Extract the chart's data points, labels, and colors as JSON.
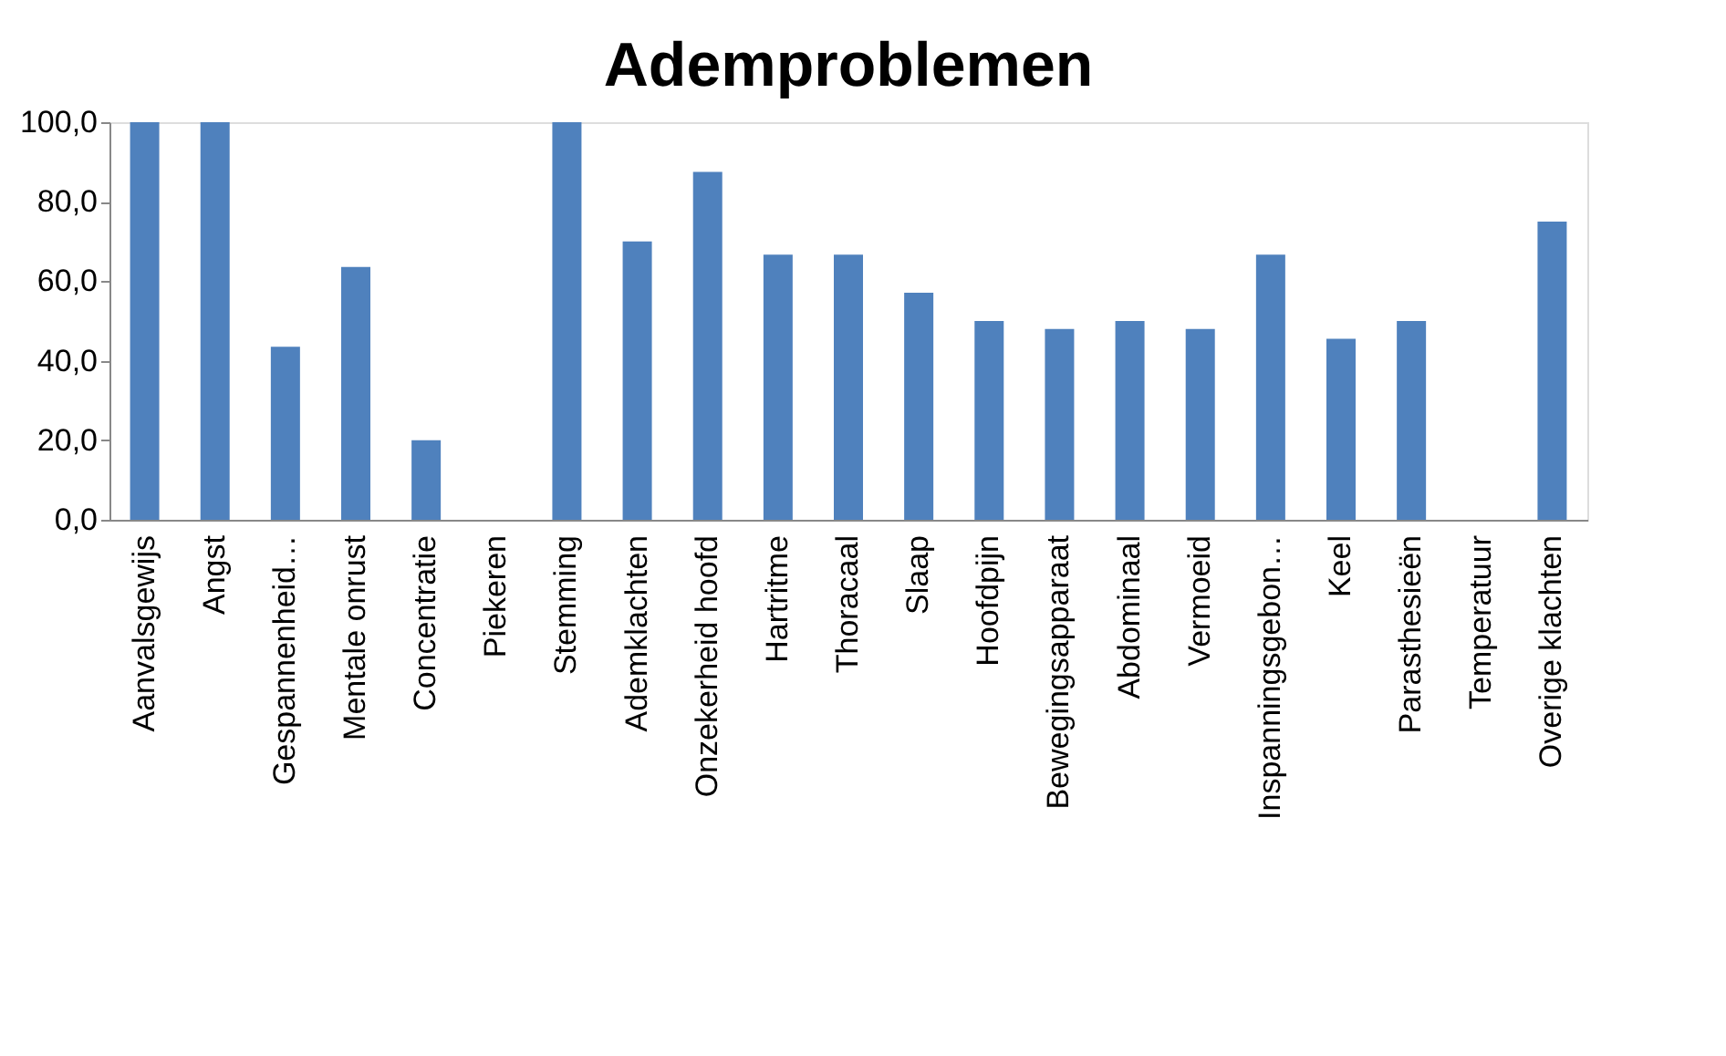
{
  "chart_data": {
    "type": "bar",
    "title": "Ademproblemen",
    "categories": [
      "Aanvalsgewijs",
      "Angst",
      "Gespannenheid…",
      "Mentale onrust",
      "Concentratie",
      "Piekeren",
      "Stemming",
      "Ademklachten",
      "Onzekerheid hoofd",
      "Hartritme",
      "Thoracaal",
      "Slaap",
      "Hoofdpijn",
      "Bewegingsapparaat",
      "Abdominaal",
      "Vermoeid",
      "Inspanningsgebon…",
      "Keel",
      "Parasthesieën",
      "Temperatuur",
      "Overige klachten"
    ],
    "values": [
      100,
      100,
      43.5,
      63.6,
      20,
      0,
      100,
      70,
      87.5,
      66.7,
      66.7,
      57.1,
      50,
      48,
      50,
      48,
      66.7,
      45.5,
      50,
      0,
      75
    ],
    "color": "#4f81bd",
    "ylim": [
      0,
      100
    ],
    "yticks": [
      {
        "value": 0,
        "label": "0,0"
      },
      {
        "value": 20,
        "label": "20,0"
      },
      {
        "value": 40,
        "label": "40,0"
      },
      {
        "value": 60,
        "label": "60,0"
      },
      {
        "value": 80,
        "label": "80,0"
      },
      {
        "value": 100,
        "label": "100,0"
      }
    ],
    "grid": false
  }
}
